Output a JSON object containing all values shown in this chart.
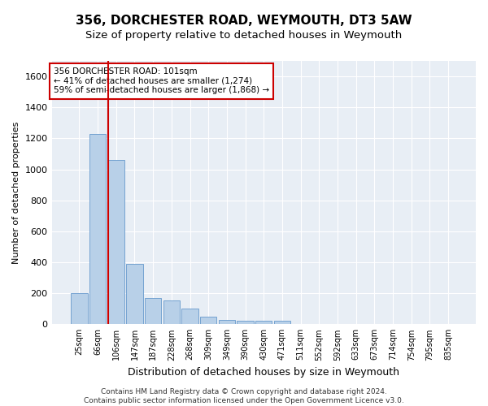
{
  "title": "356, DORCHESTER ROAD, WEYMOUTH, DT3 5AW",
  "subtitle": "Size of property relative to detached houses in Weymouth",
  "xlabel": "Distribution of detached houses by size in Weymouth",
  "ylabel": "Number of detached properties",
  "categories": [
    "25sqm",
    "66sqm",
    "106sqm",
    "147sqm",
    "187sqm",
    "228sqm",
    "268sqm",
    "309sqm",
    "349sqm",
    "390sqm",
    "430sqm",
    "471sqm",
    "511sqm",
    "552sqm",
    "592sqm",
    "633sqm",
    "673sqm",
    "714sqm",
    "754sqm",
    "795sqm",
    "835sqm"
  ],
  "values": [
    200,
    1230,
    1060,
    390,
    170,
    155,
    100,
    50,
    30,
    20,
    20,
    20,
    0,
    0,
    0,
    0,
    0,
    0,
    0,
    0,
    0
  ],
  "bar_color": "#b8d0e8",
  "bar_edge_color": "#6699cc",
  "vline_index": 2,
  "vline_color": "#cc0000",
  "annotation_text": "356 DORCHESTER ROAD: 101sqm\n← 41% of detached houses are smaller (1,274)\n59% of semi-detached houses are larger (1,868) →",
  "annotation_box_color": "#ffffff",
  "annotation_box_edge_color": "#cc0000",
  "ylim": [
    0,
    1700
  ],
  "yticks": [
    0,
    200,
    400,
    600,
    800,
    1000,
    1200,
    1400,
    1600
  ],
  "background_color": "#e8eef5",
  "grid_color": "#ffffff",
  "footer": "Contains HM Land Registry data © Crown copyright and database right 2024.\nContains public sector information licensed under the Open Government Licence v3.0.",
  "title_fontsize": 11,
  "subtitle_fontsize": 9.5,
  "xlabel_fontsize": 9,
  "ylabel_fontsize": 8,
  "tick_fontsize": 8,
  "xtick_fontsize": 7,
  "footer_fontsize": 6.5,
  "annotation_fontsize": 7.5
}
